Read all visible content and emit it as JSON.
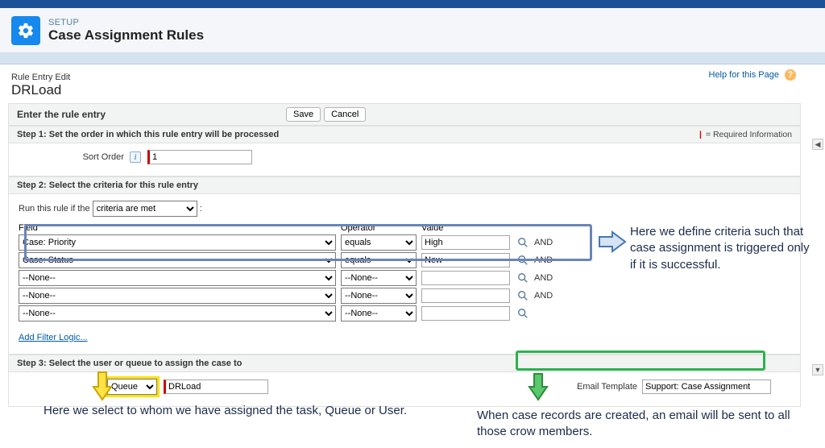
{
  "header": {
    "eyebrow": "SETUP",
    "title": "Case Assignment Rules"
  },
  "page": {
    "breadcrumb": "Rule Entry Edit",
    "title": "DRLoad",
    "help": "Help for this Page"
  },
  "entry_bar": {
    "label": "Enter the rule entry",
    "save": "Save",
    "cancel": "Cancel"
  },
  "step1": {
    "title": "Step 1: Set the order in which this rule entry will be processed",
    "req_marker": "|",
    "req_text": "= Required Information",
    "sort_label": "Sort Order",
    "sort_value": "1"
  },
  "step2": {
    "title": "Step 2: Select the criteria for this rule entry",
    "run_label": "Run this rule if the",
    "run_option": "criteria are met",
    "cols": {
      "field": "Field",
      "operator": "Operator",
      "value": "Value"
    },
    "rows": [
      {
        "field": "Case: Priority",
        "operator": "equals",
        "value": "High",
        "and": "AND"
      },
      {
        "field": "Case: Status",
        "operator": "equals",
        "value": "New",
        "and": "AND"
      },
      {
        "field": "--None--",
        "operator": "--None--",
        "value": "",
        "and": "AND"
      },
      {
        "field": "--None--",
        "operator": "--None--",
        "value": "",
        "and": "AND"
      },
      {
        "field": "--None--",
        "operator": "--None--",
        "value": "",
        "and": ""
      }
    ],
    "add_filter": "Add Filter Logic..."
  },
  "step3": {
    "title": "Step 3: Select the user or queue to assign the case to",
    "assignee_type": "Queue",
    "assignee_value": "DRLoad",
    "email_label": "Email Template",
    "email_value": "Support: Case Assignment"
  },
  "annotations": {
    "blue": "Here we define criteria such that case assignment is triggered only if it is successful.",
    "yellow": "Here we select to whom we have assigned the task, Queue or User.",
    "green": "When case records are created, an email will be sent to all those crow members."
  },
  "colors": {
    "blue_box": "#6a85b6",
    "green_box": "#2bb24c",
    "yellow_hl": "#ffe100",
    "arrow_blue_fill": "#d5e3f3",
    "arrow_blue_stroke": "#4777b3",
    "arrow_yellow_fill": "#ffe344",
    "arrow_yellow_stroke": "#c9a600",
    "arrow_green_fill": "#5bc86e",
    "arrow_green_stroke": "#2e8b3d"
  }
}
